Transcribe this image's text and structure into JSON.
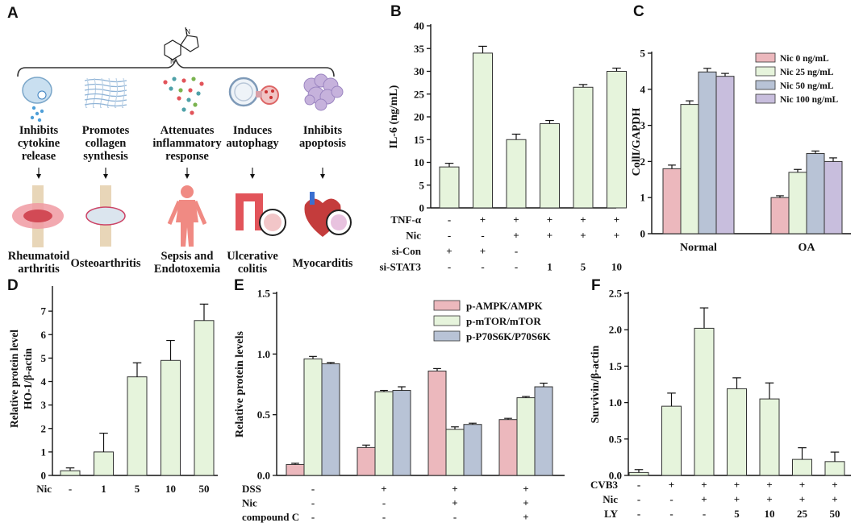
{
  "colors": {
    "green": "#e6f4dc",
    "pink": "#ecb8bd",
    "blue": "#b8c3d6",
    "purple": "#c8bedd",
    "red_organ": "#e2545a",
    "body": "#f08a83"
  },
  "panel_a": {
    "letter": "A",
    "effects": [
      {
        "lines": [
          "Inhibits",
          "cytokine",
          "release"
        ],
        "icon": "cell-secretion-icon"
      },
      {
        "lines": [
          "Promotes",
          "collagen",
          "synthesis"
        ],
        "icon": "collagen-mesh-icon"
      },
      {
        "lines": [
          "Attenuates",
          "inflammatory",
          "response"
        ],
        "icon": "cytokine-storm-icon"
      },
      {
        "lines": [
          "Induces",
          "autophagy"
        ],
        "icon": "autophagosome-icon"
      },
      {
        "lines": [
          "Inhibits",
          "apoptosis"
        ],
        "icon": "apoptotic-cell-icon"
      }
    ],
    "diseases": [
      {
        "lines": [
          "Rheumatoid",
          "arthritis"
        ],
        "icon": "inflamed-joint-icon"
      },
      {
        "lines": [
          "Osteoarthritis"
        ],
        "icon": "knee-joint-icon"
      },
      {
        "lines": [
          "Sepsis and",
          "Endotoxemia"
        ],
        "icon": "human-body-icon"
      },
      {
        "lines": [
          "Ulcerative",
          "colitis"
        ],
        "icon": "intestine-icon"
      },
      {
        "lines": [
          "Myocarditis"
        ],
        "icon": "heart-icon"
      }
    ]
  },
  "chart_data": [
    {
      "id": "B",
      "letter": "B",
      "type": "bar",
      "ylabel": "IL-6 (ng/mL)",
      "ylim": [
        0,
        40
      ],
      "yticks": [
        "0",
        "5",
        "10",
        "15",
        "20",
        "25",
        "30",
        "35",
        "40"
      ],
      "values": [
        9,
        34,
        15,
        18.5,
        26.5,
        30
      ],
      "errors": [
        0.8,
        1.5,
        1.2,
        0.7,
        0.6,
        0.7
      ],
      "conditions": [
        {
          "label": "TNF-α",
          "cells": [
            "-",
            "+",
            "+",
            "+",
            "+",
            "+"
          ]
        },
        {
          "label": "Nic",
          "cells": [
            "-",
            "-",
            "+",
            "+",
            "+",
            "+"
          ]
        },
        {
          "label": "si-Con",
          "cells": [
            "+",
            "+",
            "-",
            "",
            "",
            ""
          ]
        },
        {
          "label": "si-STAT3",
          "cells": [
            "-",
            "-",
            "-",
            "1",
            "5",
            "10"
          ]
        }
      ]
    },
    {
      "id": "C",
      "letter": "C",
      "type": "bar",
      "ylabel": "CollI/GAPDH",
      "ylim": [
        0,
        5
      ],
      "yticks": [
        "0",
        "1",
        "2",
        "3",
        "4",
        "5"
      ],
      "categories": [
        "Normal",
        "OA"
      ],
      "series": [
        {
          "name": "Nic 0 ng/mL",
          "values": [
            1.8,
            1.0
          ],
          "errors": [
            0.1,
            0.05
          ]
        },
        {
          "name": "Nic 25 ng/mL",
          "values": [
            3.58,
            1.7
          ],
          "errors": [
            0.1,
            0.08
          ]
        },
        {
          "name": "Nic 50 ng/mL",
          "values": [
            4.48,
            2.22
          ],
          "errors": [
            0.1,
            0.07
          ]
        },
        {
          "name": "Nic 100 ng/mL",
          "values": [
            4.36,
            2.0
          ],
          "errors": [
            0.08,
            0.1
          ]
        }
      ]
    },
    {
      "id": "D",
      "letter": "D",
      "type": "bar",
      "ylabel": [
        "Relative protein level",
        "HO-1/β-actin"
      ],
      "ylim": [
        0,
        8
      ],
      "yticks": [
        "0",
        "1",
        "2",
        "3",
        "4",
        "5",
        "6",
        "7"
      ],
      "values": [
        0.2,
        1.0,
        4.2,
        4.9,
        6.6
      ],
      "errors": [
        0.12,
        0.8,
        0.6,
        0.85,
        0.7
      ],
      "conditions": [
        {
          "label": "Nic",
          "cells": [
            "-",
            "1",
            "5",
            "10",
            "50"
          ]
        }
      ]
    },
    {
      "id": "E",
      "letter": "E",
      "type": "bar",
      "ylabel": "Relative protein levels",
      "ylim": [
        0,
        1.5
      ],
      "yticks": [
        "0.0",
        "0.5",
        "1.0",
        "1.5"
      ],
      "series": [
        {
          "name": "p-AMPK/AMPK",
          "values": [
            0.09,
            0.23,
            0.86,
            0.46
          ],
          "errors": [
            0.01,
            0.02,
            0.02,
            0.01
          ]
        },
        {
          "name": "p-mTOR/mTOR",
          "values": [
            0.96,
            0.69,
            0.38,
            0.64
          ],
          "errors": [
            0.02,
            0.01,
            0.02,
            0.01
          ]
        },
        {
          "name": "p-P70S6K/P70S6K",
          "values": [
            0.92,
            0.7,
            0.42,
            0.73
          ],
          "errors": [
            0.01,
            0.03,
            0.01,
            0.03
          ]
        }
      ],
      "conditions": [
        {
          "label": "DSS",
          "cells": [
            "-",
            "+",
            "+",
            "+"
          ]
        },
        {
          "label": "Nic",
          "cells": [
            "-",
            "-",
            "+",
            "+"
          ]
        },
        {
          "label": "compound C",
          "cells": [
            "-",
            "-",
            "-",
            "+"
          ]
        }
      ]
    },
    {
      "id": "F",
      "letter": "F",
      "type": "bar",
      "ylabel": "Survivin/β-actin",
      "ylim": [
        0,
        2.5
      ],
      "yticks": [
        "0.0",
        "0.5",
        "1.0",
        "1.5",
        "2.0",
        "2.5"
      ],
      "values": [
        0.04,
        0.95,
        2.02,
        1.19,
        1.05,
        0.22,
        0.19
      ],
      "errors": [
        0.04,
        0.18,
        0.28,
        0.15,
        0.22,
        0.16,
        0.13
      ],
      "conditions": [
        {
          "label": "CVB3",
          "cells": [
            "-",
            "+",
            "+",
            "+",
            "+",
            "+",
            "+"
          ]
        },
        {
          "label": "Nic",
          "cells": [
            "-",
            "-",
            "+",
            "+",
            "+",
            "+",
            "+"
          ]
        },
        {
          "label": "LY",
          "cells": [
            "-",
            "-",
            "-",
            "5",
            "10",
            "25",
            "50"
          ]
        }
      ]
    }
  ]
}
